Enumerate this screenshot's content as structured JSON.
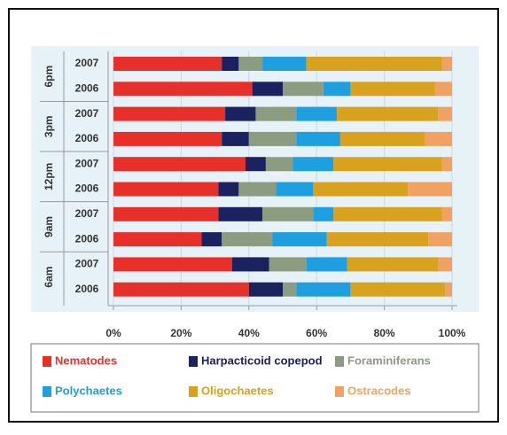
{
  "chart_data": {
    "type": "stacked_bar_horizontal_percent",
    "groups": [
      "6pm",
      "3pm",
      "12pm",
      "9am",
      "6am"
    ],
    "categories": [
      "2007",
      "2006",
      "2007",
      "2006",
      "2007",
      "2006",
      "2007",
      "2006",
      "2007",
      "2006"
    ],
    "series": [
      {
        "name": "Nematodes",
        "color": "#e8302a",
        "values": [
          32,
          41,
          33,
          32,
          39,
          31,
          31,
          26,
          35,
          40
        ]
      },
      {
        "name": "Harpacticoid copepod",
        "color": "#1c2160",
        "values": [
          5,
          9,
          9,
          8,
          6,
          6,
          13,
          6,
          11,
          10
        ]
      },
      {
        "name": "Foraminiferans",
        "color": "#8c9c80",
        "values": [
          7,
          12,
          12,
          14,
          8,
          11,
          15,
          15,
          11,
          4
        ]
      },
      {
        "name": "Polychaetes",
        "color": "#1e9fe0",
        "values": [
          13,
          8,
          12,
          13,
          12,
          11,
          6,
          16,
          12,
          16
        ]
      },
      {
        "name": "Oligochaetes",
        "color": "#d8a21e",
        "values": [
          40,
          25,
          30,
          25,
          32,
          28,
          32,
          30,
          27,
          28
        ]
      },
      {
        "name": "Ostracodes",
        "color": "#f0a262",
        "values": [
          3,
          5,
          4,
          8,
          3,
          13,
          3,
          7,
          4,
          2
        ]
      }
    ],
    "xlim": [
      0,
      100
    ],
    "xticks": [
      {
        "value": 0,
        "label": "0%"
      },
      {
        "value": 20,
        "label": "20%"
      },
      {
        "value": 40,
        "label": "40%"
      },
      {
        "value": 60,
        "label": "60%"
      },
      {
        "value": 80,
        "label": "80%"
      },
      {
        "value": 100,
        "label": "100%"
      }
    ],
    "grid": true
  }
}
